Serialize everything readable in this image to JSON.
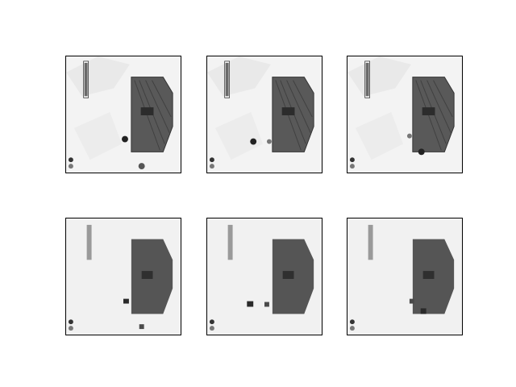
{
  "figure": {
    "rows": 2,
    "cols": 3,
    "frames": [
      {
        "row": 1,
        "col": 1,
        "style": "sharp",
        "health_bar": "segmented",
        "player": "left",
        "enemy": "bottom"
      },
      {
        "row": 1,
        "col": 2,
        "style": "sharp",
        "health_bar": "segmented",
        "player": "left",
        "enemy": "none"
      },
      {
        "row": 1,
        "col": 3,
        "style": "sharp",
        "health_bar": "segmented",
        "player": "bottom-left",
        "enemy": "none"
      },
      {
        "row": 2,
        "col": 1,
        "style": "blurred",
        "health_bar": "solid",
        "player": "left",
        "enemy": "bottom"
      },
      {
        "row": 2,
        "col": 2,
        "style": "blurred",
        "health_bar": "solid",
        "player": "left",
        "enemy": "none"
      },
      {
        "row": 2,
        "col": 3,
        "style": "blurred",
        "health_bar": "solid",
        "player": "bottom-left",
        "enemy": "none"
      }
    ],
    "colors": {
      "background": "#f4f4f4",
      "building": "#555555",
      "roof_shadow": "#3a3a3a",
      "border": "#000000"
    },
    "icons": [
      "lives-icon",
      "bomb-icon",
      "player-sprite",
      "enemy-sprite",
      "health-bar"
    ]
  }
}
